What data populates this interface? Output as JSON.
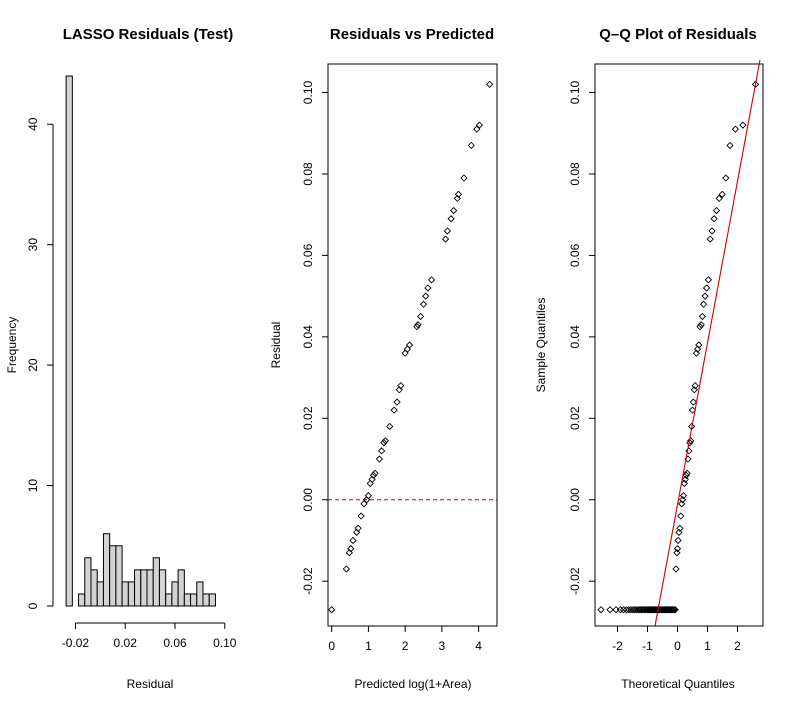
{
  "chart_data": [
    {
      "type": "bar",
      "title": "LASSO Residuals (Test)",
      "xlabel": "Residual",
      "ylabel": "Frequency",
      "bin_width": 0.005,
      "bin_start": -0.0275,
      "values": [
        44,
        0,
        1,
        4,
        3,
        2,
        6,
        5,
        5,
        2,
        2,
        3,
        3,
        3,
        4,
        3,
        1,
        2,
        3,
        1,
        1,
        2,
        1,
        1
      ],
      "xlim": [
        -0.03,
        0.105
      ],
      "ylim": [
        0,
        45
      ],
      "x_ticks": [
        "-0.02",
        "0.02",
        "0.06",
        "0.10"
      ],
      "x_tick_values": [
        -0.02,
        0.02,
        0.06,
        0.1
      ],
      "y_ticks": [
        "0",
        "10",
        "20",
        "30",
        "40"
      ],
      "y_tick_values": [
        0,
        10,
        20,
        30,
        40
      ],
      "colors": {
        "bar_fill": "#d3d3d3",
        "bar_stroke": "#000000"
      }
    },
    {
      "type": "scatter",
      "title": "Residuals vs Predicted",
      "xlabel": "Predicted log(1+Area)",
      "ylabel": "Residual",
      "xlim": [
        -0.1,
        4.5
      ],
      "ylim": [
        -0.031,
        0.107
      ],
      "x_ticks": [
        "0",
        "1",
        "2",
        "3",
        "4"
      ],
      "x_tick_values": [
        0,
        1,
        2,
        3,
        4
      ],
      "y_ticks": [
        "-0.02",
        "0.00",
        "0.02",
        "0.04",
        "0.06",
        "0.08",
        "0.10"
      ],
      "y_tick_values": [
        -0.02,
        0,
        0.02,
        0.04,
        0.06,
        0.08,
        0.1
      ],
      "reference_line": {
        "y": 0,
        "style": "dashed",
        "color": "#cc0000"
      },
      "points": [
        [
          0.0,
          -0.027
        ],
        [
          0.4,
          -0.017
        ],
        [
          0.48,
          -0.013
        ],
        [
          0.52,
          -0.012
        ],
        [
          0.58,
          -0.01
        ],
        [
          0.68,
          -0.008
        ],
        [
          0.72,
          -0.007
        ],
        [
          0.8,
          -0.004
        ],
        [
          0.88,
          -0.001
        ],
        [
          0.95,
          0.0
        ],
        [
          1.0,
          0.001
        ],
        [
          1.05,
          0.004
        ],
        [
          1.1,
          0.005
        ],
        [
          1.14,
          0.006
        ],
        [
          1.18,
          0.0065
        ],
        [
          1.3,
          0.01
        ],
        [
          1.36,
          0.012
        ],
        [
          1.42,
          0.014
        ],
        [
          1.46,
          0.0145
        ],
        [
          1.58,
          0.018
        ],
        [
          1.7,
          0.022
        ],
        [
          1.78,
          0.024
        ],
        [
          1.84,
          0.027
        ],
        [
          1.88,
          0.028
        ],
        [
          2.0,
          0.036
        ],
        [
          2.06,
          0.037
        ],
        [
          2.12,
          0.038
        ],
        [
          2.32,
          0.0425
        ],
        [
          2.35,
          0.043
        ],
        [
          2.42,
          0.045
        ],
        [
          2.5,
          0.048
        ],
        [
          2.56,
          0.05
        ],
        [
          2.62,
          0.052
        ],
        [
          2.72,
          0.054
        ],
        [
          3.1,
          0.064
        ],
        [
          3.15,
          0.066
        ],
        [
          3.25,
          0.069
        ],
        [
          3.32,
          0.071
        ],
        [
          3.42,
          0.074
        ],
        [
          3.45,
          0.075
        ],
        [
          3.6,
          0.079
        ],
        [
          3.8,
          0.087
        ],
        [
          3.95,
          0.091
        ],
        [
          4.02,
          0.092
        ],
        [
          4.3,
          0.102
        ]
      ],
      "colors": {
        "point": "#000000",
        "reference_line": "#cc0000"
      }
    },
    {
      "type": "scatter",
      "title": "Q–Q Plot of Residuals",
      "xlabel": "Theoretical Quantiles",
      "ylabel": "Sample Quantiles",
      "xlim": [
        -2.75,
        2.85
      ],
      "ylim": [
        -0.031,
        0.107
      ],
      "x_ticks": [
        "-2",
        "-1",
        "0",
        "1",
        "2"
      ],
      "x_tick_values": [
        -2,
        -1,
        0,
        1,
        2
      ],
      "y_ticks": [
        "-0.02",
        "0.00",
        "0.02",
        "0.04",
        "0.06",
        "0.08",
        "0.10"
      ],
      "y_tick_values": [
        -0.02,
        0,
        0.02,
        0.04,
        0.06,
        0.08,
        0.1
      ],
      "reference_line": {
        "from": [
          -0.75,
          -0.031
        ],
        "to": [
          2.75,
          0.108
        ],
        "color": "#cc0000"
      },
      "points": [
        [
          -2.55,
          -0.027
        ],
        [
          -2.25,
          -0.027
        ],
        [
          -2.05,
          -0.027
        ],
        [
          -1.9,
          -0.027
        ],
        [
          -1.8,
          -0.027
        ],
        [
          -1.7,
          -0.027
        ],
        [
          -1.62,
          -0.027
        ],
        [
          -1.55,
          -0.027
        ],
        [
          -1.48,
          -0.027
        ],
        [
          -1.42,
          -0.027
        ],
        [
          -1.36,
          -0.027
        ],
        [
          -1.3,
          -0.027
        ],
        [
          -1.25,
          -0.027
        ],
        [
          -1.2,
          -0.027
        ],
        [
          -1.15,
          -0.027
        ],
        [
          -1.1,
          -0.027
        ],
        [
          -1.05,
          -0.027
        ],
        [
          -1.0,
          -0.027
        ],
        [
          -0.96,
          -0.027
        ],
        [
          -0.92,
          -0.027
        ],
        [
          -0.88,
          -0.027
        ],
        [
          -0.84,
          -0.027
        ],
        [
          -0.8,
          -0.027
        ],
        [
          -0.76,
          -0.027
        ],
        [
          -0.72,
          -0.027
        ],
        [
          -0.68,
          -0.027
        ],
        [
          -0.64,
          -0.027
        ],
        [
          -0.6,
          -0.027
        ],
        [
          -0.56,
          -0.027
        ],
        [
          -0.52,
          -0.027
        ],
        [
          -0.48,
          -0.027
        ],
        [
          -0.44,
          -0.027
        ],
        [
          -0.4,
          -0.027
        ],
        [
          -0.36,
          -0.027
        ],
        [
          -0.32,
          -0.027
        ],
        [
          -0.28,
          -0.027
        ],
        [
          -0.24,
          -0.027
        ],
        [
          -0.2,
          -0.027
        ],
        [
          -0.16,
          -0.027
        ],
        [
          -0.12,
          -0.027
        ],
        [
          -0.08,
          -0.027
        ],
        [
          -0.05,
          -0.017
        ],
        [
          -0.02,
          -0.013
        ],
        [
          0.0,
          -0.012
        ],
        [
          0.02,
          -0.01
        ],
        [
          0.05,
          -0.008
        ],
        [
          0.08,
          -0.007
        ],
        [
          0.11,
          -0.004
        ],
        [
          0.14,
          -0.001
        ],
        [
          0.17,
          0.0
        ],
        [
          0.2,
          0.001
        ],
        [
          0.23,
          0.004
        ],
        [
          0.26,
          0.005
        ],
        [
          0.29,
          0.006
        ],
        [
          0.32,
          0.0065
        ],
        [
          0.35,
          0.01
        ],
        [
          0.38,
          0.012
        ],
        [
          0.41,
          0.014
        ],
        [
          0.44,
          0.0145
        ],
        [
          0.47,
          0.018
        ],
        [
          0.5,
          0.022
        ],
        [
          0.53,
          0.024
        ],
        [
          0.56,
          0.027
        ],
        [
          0.59,
          0.028
        ],
        [
          0.63,
          0.036
        ],
        [
          0.67,
          0.037
        ],
        [
          0.71,
          0.038
        ],
        [
          0.75,
          0.0425
        ],
        [
          0.79,
          0.043
        ],
        [
          0.83,
          0.045
        ],
        [
          0.87,
          0.048
        ],
        [
          0.92,
          0.05
        ],
        [
          0.97,
          0.052
        ],
        [
          1.03,
          0.054
        ],
        [
          1.09,
          0.064
        ],
        [
          1.15,
          0.066
        ],
        [
          1.22,
          0.069
        ],
        [
          1.3,
          0.071
        ],
        [
          1.39,
          0.074
        ],
        [
          1.49,
          0.075
        ],
        [
          1.61,
          0.079
        ],
        [
          1.75,
          0.087
        ],
        [
          1.93,
          0.091
        ],
        [
          2.18,
          0.092
        ],
        [
          2.6,
          0.102
        ]
      ],
      "colors": {
        "point": "#000000",
        "reference_line": "#cc0000"
      }
    }
  ]
}
